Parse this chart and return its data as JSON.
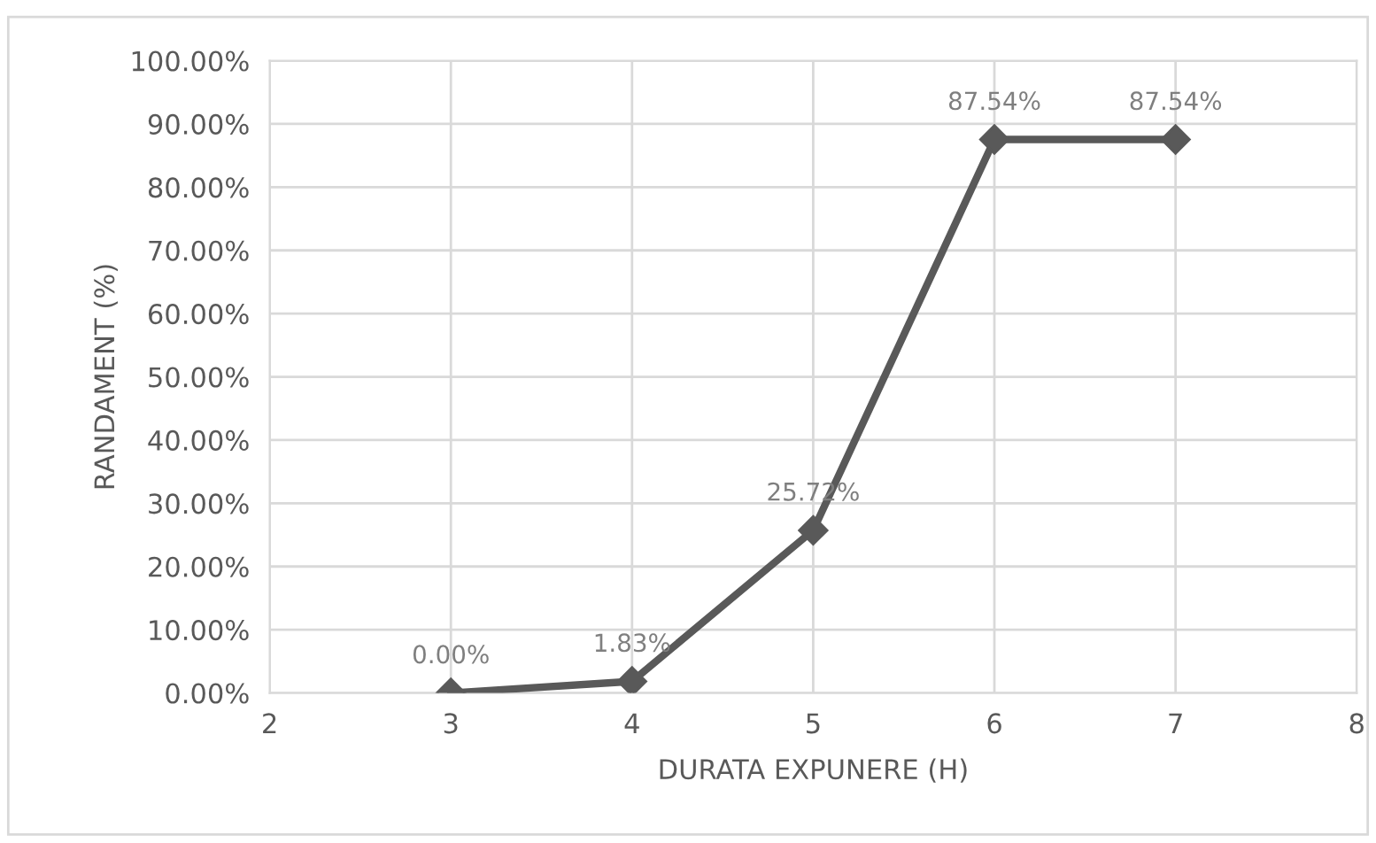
{
  "chart_data": {
    "type": "line",
    "xlabel": "DURATA EXPUNERE (H)",
    "ylabel": "RANDAMENT (%)",
    "x": [
      3,
      4,
      5,
      6,
      7
    ],
    "series": [
      {
        "color": "#595959",
        "values": [
          0.0,
          1.83,
          25.72,
          87.54,
          87.54
        ],
        "value_labels": [
          "0.00%",
          "1.83%",
          "25.72%",
          "87.54%",
          "87.54%"
        ]
      }
    ],
    "xlim": [
      2,
      8
    ],
    "xticks": [
      2,
      3,
      4,
      5,
      6,
      7,
      8
    ],
    "ylim": [
      0,
      100
    ],
    "yticks": [
      {
        "value": 0,
        "label": "0.00%"
      },
      {
        "value": 10,
        "label": "10.00%"
      },
      {
        "value": 20,
        "label": "20.00%"
      },
      {
        "value": 30,
        "label": "30.00%"
      },
      {
        "value": 40,
        "label": "40.00%"
      },
      {
        "value": 50,
        "label": "50.00%"
      },
      {
        "value": 60,
        "label": "60.00%"
      },
      {
        "value": 70,
        "label": "70.00%"
      },
      {
        "value": 80,
        "label": "80.00%"
      },
      {
        "value": 90,
        "label": "90.00%"
      },
      {
        "value": 100,
        "label": "100.00%"
      }
    ],
    "grid": true,
    "marker": "diamond",
    "line_style": "solid",
    "legend": false
  }
}
